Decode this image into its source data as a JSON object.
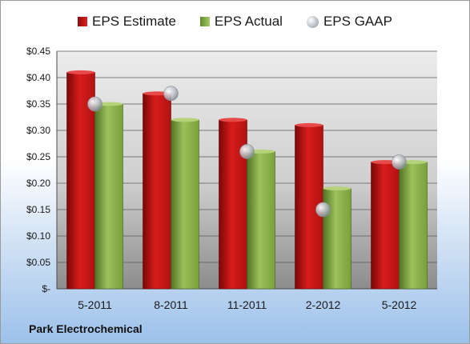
{
  "legend": {
    "estimate": "EPS Estimate",
    "actual": "EPS Actual",
    "gaap": "EPS GAAP"
  },
  "company": "Park Electrochemical",
  "colors": {
    "estimate": "#d01a1a",
    "actual": "#8db04a",
    "gaap": "#c0c4cc"
  },
  "chart_data": {
    "type": "bar",
    "categories": [
      "5-2011",
      "8-2011",
      "11-2011",
      "2-2012",
      "5-2012"
    ],
    "series": [
      {
        "name": "EPS Estimate",
        "values": [
          0.41,
          0.37,
          0.32,
          0.31,
          0.24
        ]
      },
      {
        "name": "EPS Actual",
        "values": [
          0.35,
          0.32,
          0.26,
          0.19,
          0.24
        ]
      },
      {
        "name": "EPS GAAP",
        "type": "scatter",
        "values": [
          0.35,
          0.37,
          0.26,
          0.15,
          0.24
        ]
      }
    ],
    "ylim": [
      0,
      0.45
    ],
    "ytick_labels": [
      "$-",
      "$0.05",
      "$0.10",
      "$0.15",
      "$0.20",
      "$0.25",
      "$0.30",
      "$0.35",
      "$0.40",
      "$0.45"
    ],
    "grid": true,
    "legend_position": "top"
  }
}
